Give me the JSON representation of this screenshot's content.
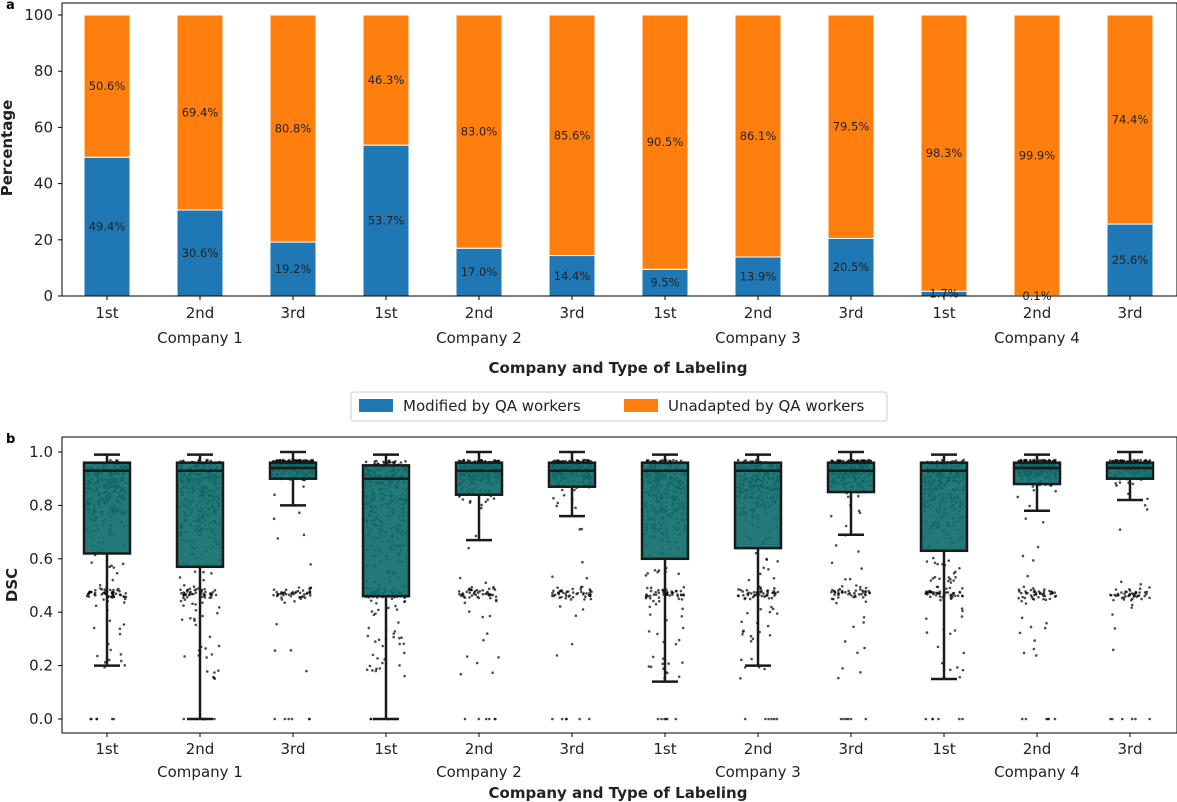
{
  "figure": {
    "panel_labels": [
      "a",
      "b"
    ]
  },
  "chart_data": [
    {
      "type": "bar",
      "stacked": true,
      "panel": "a",
      "ylabel": "Percentage",
      "xlabel": "Company and Type of Labeling",
      "ylim": [
        0,
        100
      ],
      "yticks": [
        0,
        20,
        40,
        60,
        80,
        100
      ],
      "categories": [
        "1st",
        "2nd",
        "3rd",
        "1st",
        "2nd",
        "3rd",
        "1st",
        "2nd",
        "3rd",
        "1st",
        "2nd",
        "3rd"
      ],
      "groups": [
        "Company 1",
        "Company 2",
        "Company 3",
        "Company 4"
      ],
      "series": [
        {
          "name": "Modified by QA workers",
          "color": "#1f77b4",
          "values": [
            49.4,
            30.6,
            19.2,
            53.7,
            17.0,
            14.4,
            9.5,
            13.9,
            20.5,
            1.7,
            0.1,
            25.6
          ],
          "labels": [
            "49.4%",
            "30.6%",
            "19.2%",
            "53.7%",
            "17.0%",
            "14.4%",
            "9.5%",
            "13.9%",
            "20.5%",
            "1.7%",
            "0.1%",
            "25.6%"
          ]
        },
        {
          "name": "Unadapted by QA workers",
          "color": "#ff7f0e",
          "values": [
            50.6,
            69.4,
            80.8,
            46.3,
            83.0,
            85.6,
            90.5,
            86.1,
            79.5,
            98.3,
            99.9,
            74.4
          ],
          "labels": [
            "50.6%",
            "69.4%",
            "80.8%",
            "46.3%",
            "83.0%",
            "85.6%",
            "90.5%",
            "86.1%",
            "79.5%",
            "98.3%",
            "99.9%",
            "74.4%"
          ]
        }
      ],
      "legend": {
        "placement": "bottom-center",
        "entries": [
          "Modified by QA workers",
          "Unadapted by QA workers"
        ]
      }
    },
    {
      "type": "box",
      "panel": "b",
      "ylabel": "DSC",
      "xlabel": "Company and Type of Labeling",
      "ylim": [
        0,
        1
      ],
      "yticks": [
        0.0,
        0.2,
        0.4,
        0.6,
        0.8,
        1.0
      ],
      "ytick_labels": [
        "0.0",
        "0.2",
        "0.4",
        "0.6",
        "0.8",
        "1.0"
      ],
      "categories": [
        "1st",
        "2nd",
        "3rd",
        "1st",
        "2nd",
        "3rd",
        "1st",
        "2nd",
        "3rd",
        "1st",
        "2nd",
        "3rd"
      ],
      "groups": [
        "Company 1",
        "Company 2",
        "Company 3",
        "Company 4"
      ],
      "box_color": "#0f6e6b",
      "boxes": [
        {
          "q1": 0.62,
          "median": 0.93,
          "q3": 0.96,
          "whisker_low": 0.2,
          "whisker_high": 0.99
        },
        {
          "q1": 0.57,
          "median": 0.93,
          "q3": 0.96,
          "whisker_low": 0.0,
          "whisker_high": 0.99
        },
        {
          "q1": 0.9,
          "median": 0.94,
          "q3": 0.96,
          "whisker_low": 0.8,
          "whisker_high": 1.0
        },
        {
          "q1": 0.46,
          "median": 0.9,
          "q3": 0.95,
          "whisker_low": 0.0,
          "whisker_high": 0.99
        },
        {
          "q1": 0.84,
          "median": 0.93,
          "q3": 0.96,
          "whisker_low": 0.67,
          "whisker_high": 1.0
        },
        {
          "q1": 0.87,
          "median": 0.93,
          "q3": 0.96,
          "whisker_low": 0.76,
          "whisker_high": 1.0
        },
        {
          "q1": 0.6,
          "median": 0.93,
          "q3": 0.96,
          "whisker_low": 0.14,
          "whisker_high": 0.99
        },
        {
          "q1": 0.64,
          "median": 0.93,
          "q3": 0.96,
          "whisker_low": 0.2,
          "whisker_high": 0.99
        },
        {
          "q1": 0.85,
          "median": 0.93,
          "q3": 0.96,
          "whisker_low": 0.69,
          "whisker_high": 1.0
        },
        {
          "q1": 0.63,
          "median": 0.93,
          "q3": 0.96,
          "whisker_low": 0.15,
          "whisker_high": 0.99
        },
        {
          "q1": 0.88,
          "median": 0.94,
          "q3": 0.96,
          "whisker_low": 0.78,
          "whisker_high": 0.99
        },
        {
          "q1": 0.9,
          "median": 0.94,
          "q3": 0.96,
          "whisker_low": 0.82,
          "whisker_high": 1.0
        }
      ],
      "scatter_overlay": "jittered individual DSC values per category"
    }
  ]
}
